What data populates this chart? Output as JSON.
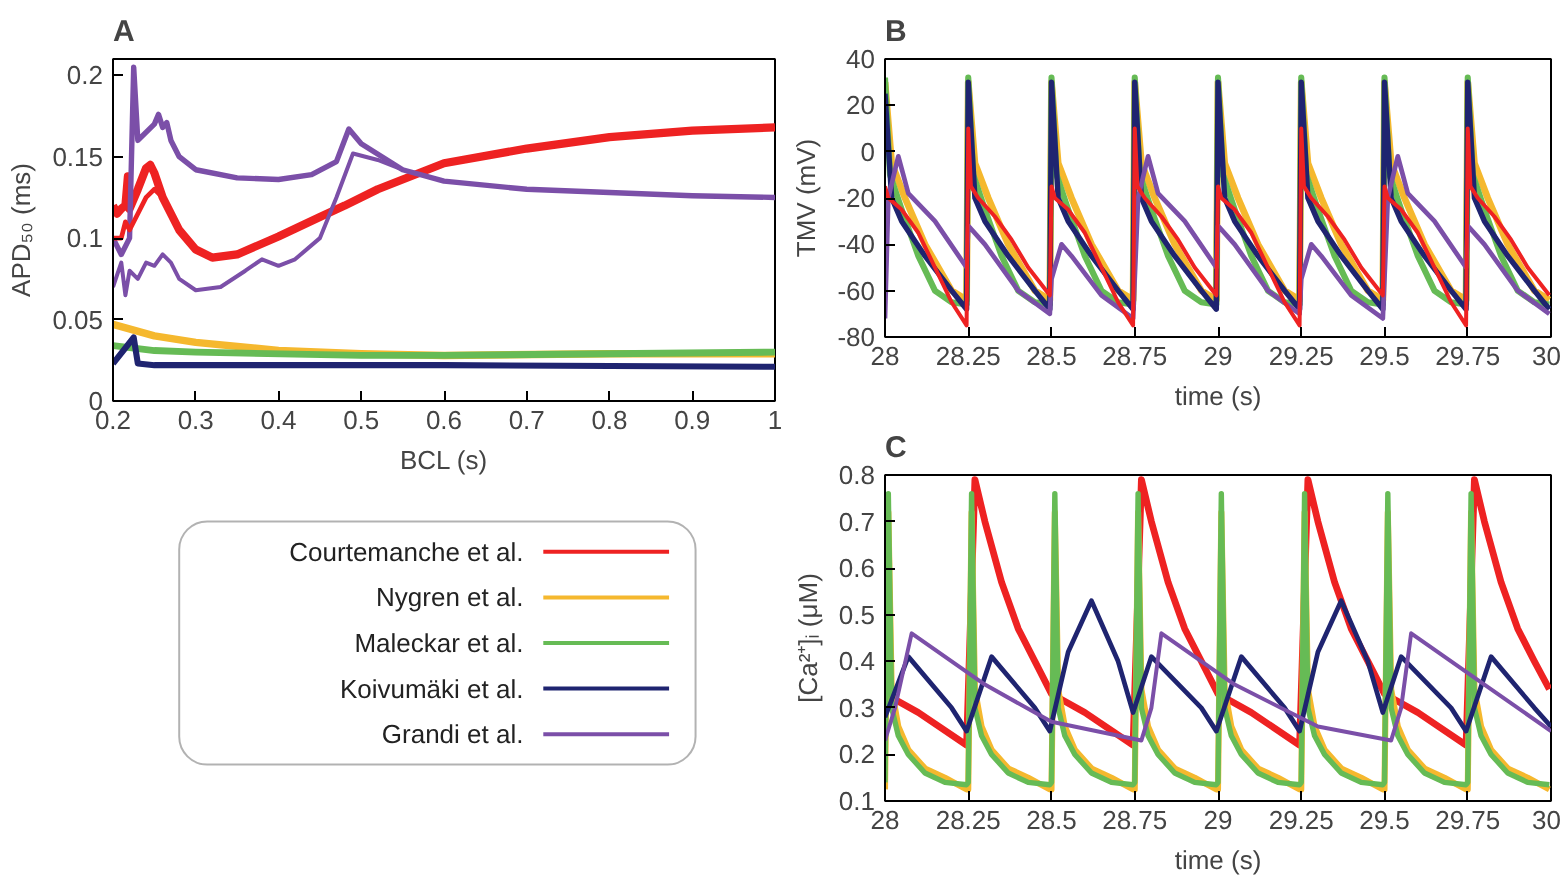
{
  "chart_data": [
    {
      "type": "line",
      "title": "A",
      "xlabel": "BCL (s)",
      "ylabel": "APD₅₀ (ms)",
      "xlim": [
        0.2,
        1
      ],
      "ylim": [
        0,
        0.21
      ],
      "xticks": [
        0.2,
        0.3,
        0.4,
        0.5,
        0.6,
        0.7,
        0.8,
        0.9,
        1
      ],
      "yticks": [
        0,
        0.05,
        0.1,
        0.15,
        0.2
      ],
      "legend": "bottom",
      "series": [
        {
          "name": "Courtemanche et al.",
          "color": "#ee2222",
          "x": [
            0.2,
            0.205,
            0.21,
            0.215,
            0.218,
            0.22,
            0.23,
            0.24,
            0.245,
            0.25,
            0.26,
            0.28,
            0.3,
            0.32,
            0.35,
            0.4,
            0.45,
            0.48,
            0.52,
            0.57,
            0.6,
            0.7,
            0.8,
            0.9,
            1
          ],
          "values": [
            0.12,
            0.115,
            0.118,
            0.12,
            0.138,
            0.118,
            0.13,
            0.143,
            0.145,
            0.14,
            0.125,
            0.105,
            0.093,
            0.088,
            0.09,
            0.101,
            0.113,
            0.12,
            0.13,
            0.14,
            0.146,
            0.155,
            0.162,
            0.166,
            0.168
          ]
        },
        {
          "name": "Nygren et al.",
          "color": "#f5b82e",
          "x": [
            0.2,
            0.25,
            0.3,
            0.4,
            0.5,
            0.6,
            0.8,
            1
          ],
          "values": [
            0.047,
            0.04,
            0.036,
            0.031,
            0.029,
            0.028,
            0.029,
            0.029
          ]
        },
        {
          "name": "Maleckar et al.",
          "color": "#66bb55",
          "x": [
            0.2,
            0.25,
            0.3,
            0.5,
            0.6,
            0.8,
            1
          ],
          "values": [
            0.034,
            0.031,
            0.03,
            0.028,
            0.028,
            0.029,
            0.03
          ]
        },
        {
          "name": "Koivumäki et al.",
          "color": "#1f2470",
          "x": [
            0.2,
            0.225,
            0.23,
            0.25,
            0.4,
            0.6,
            1
          ],
          "values": [
            0.023,
            0.039,
            0.023,
            0.022,
            0.022,
            0.022,
            0.021
          ]
        },
        {
          "name": "Grandi et al.",
          "color": "#7b4fa8",
          "x": [
            0.2,
            0.21,
            0.22,
            0.225,
            0.23,
            0.25,
            0.255,
            0.26,
            0.265,
            0.27,
            0.28,
            0.3,
            0.35,
            0.4,
            0.44,
            0.47,
            0.485,
            0.5,
            0.55,
            0.6,
            0.7,
            0.8,
            0.9,
            1
          ],
          "values": [
            0.1,
            0.09,
            0.1,
            0.205,
            0.16,
            0.17,
            0.176,
            0.168,
            0.171,
            0.16,
            0.15,
            0.142,
            0.137,
            0.136,
            0.139,
            0.147,
            0.167,
            0.158,
            0.142,
            0.135,
            0.13,
            0.128,
            0.126,
            0.125
          ]
        },
        {
          "color": "#ee2222",
          "x": [
            0.2,
            0.21,
            0.215,
            0.22,
            0.23,
            0.24,
            0.25,
            0.26
          ],
          "values": [
            0.1,
            0.1,
            0.11,
            0.105,
            0.115,
            0.125,
            0.13,
            0.125
          ]
        },
        {
          "color": "#7b4fa8",
          "x": [
            0.2,
            0.21,
            0.215,
            0.22,
            0.23,
            0.24,
            0.25,
            0.26,
            0.27,
            0.28,
            0.3,
            0.33,
            0.36,
            0.38,
            0.4,
            0.42,
            0.45,
            0.47,
            0.49,
            0.52,
            0.55
          ],
          "values": [
            0.07,
            0.085,
            0.065,
            0.08,
            0.075,
            0.085,
            0.083,
            0.09,
            0.085,
            0.075,
            0.068,
            0.07,
            0.08,
            0.087,
            0.083,
            0.087,
            0.1,
            0.125,
            0.152,
            0.148,
            0.142
          ]
        }
      ]
    },
    {
      "type": "line",
      "title": "B",
      "xlabel": "time (s)",
      "ylabel": "TMV (mV)",
      "xlim": [
        28,
        30
      ],
      "ylim": [
        -80,
        40
      ],
      "xticks": [
        28,
        28.25,
        28.5,
        28.75,
        29,
        29.25,
        29.5,
        29.75,
        30
      ],
      "yticks": [
        -80,
        -60,
        -40,
        -20,
        0,
        20,
        40
      ],
      "series": [
        {
          "color": "#f5b82e",
          "x": [
            28,
            28.02,
            28.06,
            28.12,
            28.2,
            28.245,
            28.25,
            28.27,
            28.31,
            28.37,
            28.45,
            28.495,
            28.5,
            28.52,
            28.56,
            28.62,
            28.7,
            28.745,
            28.75,
            28.77,
            28.81,
            28.87,
            28.95,
            28.995,
            29,
            29.02,
            29.06,
            29.12,
            29.2,
            29.245,
            29.25,
            29.27,
            29.31,
            29.37,
            29.45,
            29.495,
            29.5,
            29.52,
            29.56,
            29.62,
            29.7,
            29.745,
            29.75,
            29.77,
            29.81,
            29.87,
            29.95,
            29.995
          ],
          "values": [
            30,
            -5,
            -20,
            -40,
            -60,
            -64,
            30,
            -5,
            -20,
            -40,
            -60,
            -64,
            30,
            -5,
            -20,
            -40,
            -60,
            -64,
            30,
            -5,
            -20,
            -40,
            -60,
            -64,
            30,
            -5,
            -20,
            -40,
            -60,
            -64,
            30,
            -5,
            -20,
            -40,
            -60,
            -64,
            30,
            -5,
            -20,
            -40,
            -60,
            -64,
            30,
            -5,
            -20,
            -40,
            -60,
            -64
          ]
        },
        {
          "color": "#66bb55",
          "x": [
            28,
            28.015,
            28.05,
            28.1,
            28.15,
            28.2,
            28.245,
            28.25,
            28.265,
            28.3,
            28.35,
            28.4,
            28.45,
            28.495,
            28.5,
            28.515,
            28.55,
            28.6,
            28.65,
            28.7,
            28.745,
            28.75,
            28.765,
            28.8,
            28.85,
            28.9,
            28.95,
            28.995,
            29,
            29.015,
            29.05,
            29.1,
            29.15,
            29.2,
            29.245,
            29.25,
            29.265,
            29.3,
            29.35,
            29.4,
            29.45,
            29.495,
            29.5,
            29.515,
            29.55,
            29.6,
            29.65,
            29.7,
            29.745,
            29.75,
            29.765,
            29.8,
            29.85,
            29.9,
            29.95,
            29.995
          ],
          "values": [
            32,
            -10,
            -25,
            -45,
            -60,
            -65,
            -66,
            32,
            -10,
            -25,
            -45,
            -60,
            -65,
            -66,
            32,
            -10,
            -25,
            -45,
            -60,
            -65,
            -66,
            32,
            -10,
            -25,
            -45,
            -60,
            -65,
            -66,
            32,
            -10,
            -25,
            -45,
            -60,
            -65,
            -66,
            32,
            -10,
            -25,
            -45,
            -60,
            -65,
            -66,
            32,
            -10,
            -25,
            -45,
            -60,
            -65,
            -66,
            32,
            -10,
            -25,
            -45,
            -60,
            -65,
            -66
          ]
        },
        {
          "color": "#1f2470",
          "x": [
            28,
            28.02,
            28.05,
            28.12,
            28.2,
            28.245,
            28.25,
            28.27,
            28.3,
            28.37,
            28.45,
            28.495,
            28.5,
            28.52,
            28.55,
            28.62,
            28.7,
            28.745,
            28.75,
            28.77,
            28.8,
            28.87,
            28.95,
            28.995,
            29,
            29.02,
            29.05,
            29.12,
            29.2,
            29.245,
            29.25,
            29.27,
            29.3,
            29.37,
            29.45,
            29.495,
            29.5,
            29.52,
            29.55,
            29.62,
            29.7,
            29.745,
            29.75,
            29.77,
            29.8,
            29.87,
            29.95,
            29.995
          ],
          "values": [
            25,
            -20,
            -30,
            -45,
            -60,
            -68,
            30,
            -20,
            -30,
            -45,
            -60,
            -68,
            30,
            -20,
            -30,
            -45,
            -60,
            -68,
            30,
            -20,
            -30,
            -45,
            -60,
            -68,
            30,
            -20,
            -30,
            -45,
            -60,
            -68,
            30,
            -20,
            -30,
            -45,
            -60,
            -68,
            30,
            -20,
            -30,
            -45,
            -60,
            -68,
            30,
            -20,
            -30,
            -45,
            -60,
            -68
          ]
        },
        {
          "color": "#7b4fa8",
          "x": [
            28,
            28.01,
            28.04,
            28.07,
            28.15,
            28.245,
            28.25,
            28.3,
            28.4,
            28.495,
            28.5,
            28.53,
            28.56,
            28.65,
            28.745,
            28.76,
            28.79,
            28.82,
            28.9,
            28.995,
            29,
            29.05,
            29.15,
            29.245,
            29.25,
            29.28,
            29.31,
            29.4,
            29.495,
            29.51,
            29.54,
            29.57,
            29.65,
            29.745,
            29.75,
            29.8,
            29.9,
            29.995
          ],
          "values": [
            -72,
            -20,
            -2,
            -18,
            -30,
            -50,
            -32,
            -40,
            -60,
            -70,
            -55,
            -40,
            -45,
            -62,
            -72,
            -20,
            -2,
            -18,
            -30,
            -50,
            -32,
            -40,
            -60,
            -70,
            -55,
            -40,
            -45,
            -62,
            -72,
            -20,
            -2,
            -18,
            -30,
            -50,
            -32,
            -40,
            -60,
            -70
          ]
        },
        {
          "color": "#ee2222",
          "x": [
            28,
            28.01,
            28.05,
            28.1,
            28.15,
            28.2,
            28.245,
            28.25,
            28.258,
            28.28,
            28.33,
            28.38,
            28.43,
            28.495,
            28.5,
            28.51,
            28.55,
            28.6,
            28.65,
            28.7,
            28.745,
            28.75,
            28.758,
            28.78,
            28.83,
            28.88,
            28.93,
            28.995,
            29,
            29.01,
            29.05,
            29.1,
            29.15,
            29.2,
            29.245,
            29.25,
            29.258,
            29.28,
            29.33,
            29.38,
            29.43,
            29.495,
            29.5,
            29.51,
            29.55,
            29.6,
            29.65,
            29.7,
            29.745,
            29.75,
            29.758,
            29.78,
            29.83,
            29.88,
            29.93,
            29.995
          ],
          "values": [
            -15,
            -20,
            -25,
            -35,
            -50,
            -65,
            -75,
            10,
            -15,
            -20,
            -28,
            -38,
            -50,
            -62,
            -15,
            -20,
            -25,
            -35,
            -50,
            -65,
            -75,
            10,
            -15,
            -20,
            -28,
            -38,
            -50,
            -62,
            -15,
            -20,
            -25,
            -35,
            -50,
            -65,
            -75,
            10,
            -15,
            -20,
            -28,
            -38,
            -50,
            -62,
            -15,
            -20,
            -25,
            -35,
            -50,
            -65,
            -75,
            10,
            -15,
            -20,
            -28,
            -38,
            -50,
            -62
          ]
        }
      ]
    },
    {
      "type": "line",
      "title": "C",
      "xlabel": "time (s)",
      "ylabel": "[Ca²⁺]ᵢ (μM)",
      "xlim": [
        28,
        30
      ],
      "ylim": [
        0.1,
        0.8
      ],
      "xticks": [
        28,
        28.25,
        28.5,
        28.75,
        29,
        29.25,
        29.5,
        29.75,
        30
      ],
      "yticks": [
        0.1,
        0.2,
        0.3,
        0.4,
        0.5,
        0.6,
        0.7,
        0.8
      ],
      "series": [
        {
          "color": "#ee2222",
          "x": [
            28,
            28.1,
            28.245,
            28.27,
            28.3,
            28.35,
            28.4,
            28.45,
            28.5,
            28.6,
            28.745,
            28.77,
            28.8,
            28.85,
            28.9,
            28.95,
            29,
            29.1,
            29.245,
            29.27,
            29.3,
            29.35,
            29.4,
            29.45,
            29.5,
            29.6,
            29.745,
            29.77,
            29.8,
            29.85,
            29.9,
            29.95,
            29.995
          ],
          "values": [
            0.33,
            0.29,
            0.22,
            0.79,
            0.7,
            0.57,
            0.47,
            0.4,
            0.33,
            0.29,
            0.22,
            0.79,
            0.7,
            0.57,
            0.47,
            0.4,
            0.33,
            0.29,
            0.22,
            0.79,
            0.7,
            0.57,
            0.47,
            0.4,
            0.33,
            0.29,
            0.22,
            0.79,
            0.7,
            0.57,
            0.47,
            0.4,
            0.34
          ]
        },
        {
          "color": "#f5b82e",
          "x": [
            28,
            28.01,
            28.02,
            28.04,
            28.07,
            28.12,
            28.18,
            28.245,
            28.25,
            28.26,
            28.27,
            28.29,
            28.32,
            28.37,
            28.43,
            28.495,
            28.5,
            28.51,
            28.52,
            28.54,
            28.57,
            28.62,
            28.68,
            28.745,
            28.75,
            28.76,
            28.77,
            28.79,
            28.82,
            28.87,
            28.93,
            28.995,
            29,
            29.01,
            29.02,
            29.04,
            29.07,
            29.12,
            29.18,
            29.245,
            29.25,
            29.26,
            29.27,
            29.29,
            29.32,
            29.37,
            29.43,
            29.495,
            29.5,
            29.51,
            29.52,
            29.54,
            29.57,
            29.62,
            29.68,
            29.745,
            29.75,
            29.76,
            29.77,
            29.79,
            29.82,
            29.87,
            29.93,
            29.995
          ],
          "values": [
            0.125,
            0.72,
            0.34,
            0.26,
            0.21,
            0.17,
            0.15,
            0.125,
            0.125,
            0.72,
            0.34,
            0.26,
            0.21,
            0.17,
            0.15,
            0.125,
            0.125,
            0.72,
            0.34,
            0.26,
            0.21,
            0.17,
            0.15,
            0.125,
            0.125,
            0.72,
            0.34,
            0.26,
            0.21,
            0.17,
            0.15,
            0.125,
            0.125,
            0.72,
            0.34,
            0.26,
            0.21,
            0.17,
            0.15,
            0.125,
            0.125,
            0.72,
            0.34,
            0.26,
            0.21,
            0.17,
            0.15,
            0.125,
            0.125,
            0.72,
            0.34,
            0.26,
            0.21,
            0.17,
            0.15,
            0.125,
            0.125,
            0.72,
            0.34,
            0.26,
            0.21,
            0.17,
            0.15,
            0.125
          ]
        },
        {
          "color": "#66bb55",
          "x": [
            28,
            28.01,
            28.02,
            28.04,
            28.07,
            28.12,
            28.18,
            28.245,
            28.25,
            28.26,
            28.27,
            28.29,
            28.32,
            28.37,
            28.43,
            28.495,
            28.5,
            28.51,
            28.52,
            28.54,
            28.57,
            28.62,
            28.68,
            28.745,
            28.75,
            28.76,
            28.77,
            28.79,
            28.82,
            28.87,
            28.93,
            28.995,
            29,
            29.01,
            29.02,
            29.04,
            29.07,
            29.12,
            29.18,
            29.245,
            29.25,
            29.26,
            29.27,
            29.29,
            29.32,
            29.37,
            29.43,
            29.495,
            29.5,
            29.51,
            29.52,
            29.54,
            29.57,
            29.62,
            29.68,
            29.745,
            29.75,
            29.76,
            29.77,
            29.79,
            29.82,
            29.87,
            29.93,
            29.995
          ],
          "values": [
            0.14,
            0.76,
            0.3,
            0.24,
            0.2,
            0.16,
            0.14,
            0.135,
            0.14,
            0.76,
            0.3,
            0.24,
            0.2,
            0.16,
            0.14,
            0.135,
            0.14,
            0.76,
            0.3,
            0.24,
            0.2,
            0.16,
            0.14,
            0.135,
            0.14,
            0.76,
            0.3,
            0.24,
            0.2,
            0.16,
            0.14,
            0.135,
            0.14,
            0.76,
            0.3,
            0.24,
            0.2,
            0.16,
            0.14,
            0.135,
            0.14,
            0.76,
            0.3,
            0.24,
            0.2,
            0.16,
            0.14,
            0.135,
            0.14,
            0.76,
            0.3,
            0.24,
            0.2,
            0.16,
            0.14,
            0.135,
            0.14,
            0.76,
            0.3,
            0.24,
            0.2,
            0.16,
            0.14,
            0.135
          ]
        },
        {
          "color": "#1f2470",
          "x": [
            28,
            28.07,
            28.2,
            28.245,
            28.32,
            28.45,
            28.495,
            28.55,
            28.62,
            28.7,
            28.745,
            28.8,
            28.95,
            28.995,
            29.07,
            29.2,
            29.245,
            29.3,
            29.37,
            29.45,
            29.495,
            29.55,
            29.7,
            29.745,
            29.82,
            29.95,
            30
          ],
          "values": [
            0.28,
            0.41,
            0.3,
            0.25,
            0.41,
            0.3,
            0.25,
            0.42,
            0.53,
            0.4,
            0.29,
            0.41,
            0.3,
            0.25,
            0.41,
            0.3,
            0.25,
            0.42,
            0.53,
            0.4,
            0.29,
            0.41,
            0.3,
            0.25,
            0.41,
            0.3,
            0.26
          ]
        },
        {
          "color": "#7b4fa8",
          "x": [
            28,
            28.03,
            28.08,
            28.3,
            28.5,
            28.77,
            28.8,
            28.83,
            29.05,
            29.3,
            29.52,
            29.55,
            29.58,
            29.8,
            30
          ],
          "values": [
            0.23,
            0.3,
            0.46,
            0.35,
            0.27,
            0.23,
            0.3,
            0.46,
            0.35,
            0.26,
            0.23,
            0.3,
            0.46,
            0.35,
            0.25
          ]
        }
      ]
    }
  ]
}
